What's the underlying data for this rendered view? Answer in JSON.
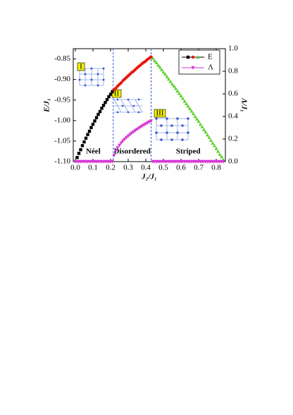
{
  "chart_data": {
    "type": "scatter",
    "xlabel": "J₂/J₁",
    "ylabel": "E/J₁",
    "y2label": "Λ/J₁",
    "xlim": [
      -0.012,
      0.852
    ],
    "ylim": [
      -1.1,
      -0.825
    ],
    "y2lim": [
      0,
      1
    ],
    "xticks": [
      {
        "value": 0,
        "label": "0.0"
      },
      {
        "value": 0.1,
        "label": "0.1"
      },
      {
        "value": 0.2,
        "label": "0.2"
      },
      {
        "value": 0.3,
        "label": "0.3"
      },
      {
        "value": 0.4,
        "label": "0.4"
      },
      {
        "value": 0.5,
        "label": "0.5"
      },
      {
        "value": 0.6,
        "label": "0.6"
      },
      {
        "value": 0.7,
        "label": "0.7"
      },
      {
        "value": 0.8,
        "label": "0.8"
      }
    ],
    "yticks": [
      -0.85,
      {
        "value": -0.9,
        "label": "-0.90"
      },
      -0.95,
      {
        "value": -1.0,
        "label": "-1.00"
      },
      -1.05,
      {
        "value": -1.1,
        "label": "-1.10"
      }
    ],
    "y2ticks": [
      {
        "value": 0,
        "label": "0.0"
      },
      {
        "value": 0.2,
        "label": "0.2"
      },
      {
        "value": 0.4,
        "label": "0.4"
      },
      {
        "value": 0.6,
        "label": "0.6"
      },
      {
        "value": 0.8,
        "label": "0.8"
      },
      {
        "value": 1,
        "label": "1.0"
      }
    ],
    "phase_boundaries": [
      0.215,
      0.43
    ],
    "phases": [
      "Néel",
      "Disordered",
      "Striped"
    ],
    "insets": [
      "I",
      "II",
      "III"
    ],
    "legend": "upper right",
    "series": [
      {
        "name": "E",
        "segments": [
          {
            "color": "#000000",
            "marker": "square",
            "x": [
              0.01,
              0.02,
              0.03,
              0.04,
              0.05,
              0.06,
              0.07,
              0.08,
              0.09,
              0.1,
              0.11,
              0.12,
              0.13,
              0.14,
              0.15,
              0.16,
              0.17,
              0.18,
              0.19,
              0.2,
              0.21
            ],
            "values": [
              -1.09,
              -1.08,
              -1.071,
              -1.061,
              -1.052,
              -1.043,
              -1.034,
              -1.026,
              -1.017,
              -1.009,
              -1.001,
              -0.993,
              -0.985,
              -0.978,
              -0.97,
              -0.963,
              -0.956,
              -0.949,
              -0.942,
              -0.936,
              -0.93
            ]
          },
          {
            "color": "#e8140c",
            "marker": "circle",
            "x": [
              0.22,
              0.23,
              0.24,
              0.25,
              0.26,
              0.27,
              0.28,
              0.29,
              0.3,
              0.31,
              0.32,
              0.33,
              0.34,
              0.35,
              0.36,
              0.37,
              0.38,
              0.39,
              0.4,
              0.41,
              0.42,
              0.43
            ],
            "values": [
              -0.925,
              -0.921,
              -0.916,
              -0.912,
              -0.908,
              -0.903,
              -0.899,
              -0.895,
              -0.891,
              -0.887,
              -0.883,
              -0.88,
              -0.876,
              -0.872,
              -0.868,
              -0.865,
              -0.861,
              -0.858,
              -0.855,
              -0.851,
              -0.848,
              -0.845
            ]
          },
          {
            "color": "#5fd12a",
            "marker": "triangle",
            "x": [
              0.44,
              0.45,
              0.46,
              0.47,
              0.48,
              0.49,
              0.5,
              0.51,
              0.52,
              0.53,
              0.54,
              0.55,
              0.56,
              0.57,
              0.58,
              0.59,
              0.6,
              0.61,
              0.62,
              0.63,
              0.64,
              0.65,
              0.66,
              0.67,
              0.68,
              0.69,
              0.7,
              0.71,
              0.72,
              0.73,
              0.74,
              0.75,
              0.76,
              0.77,
              0.78,
              0.79,
              0.8,
              0.81,
              0.82,
              0.83,
              0.84
            ],
            "values": [
              -0.848,
              -0.854,
              -0.859,
              -0.865,
              -0.87,
              -0.876,
              -0.882,
              -0.887,
              -0.893,
              -0.899,
              -0.905,
              -0.911,
              -0.916,
              -0.922,
              -0.928,
              -0.934,
              -0.94,
              -0.946,
              -0.953,
              -0.959,
              -0.965,
              -0.971,
              -0.977,
              -0.983,
              -0.99,
              -0.996,
              -1.002,
              -1.009,
              -1.015,
              -1.022,
              -1.028,
              -1.035,
              -1.041,
              -1.048,
              -1.055,
              -1.061,
              -1.068,
              -1.075,
              -1.082,
              -1.088,
              -1.095
            ]
          }
        ]
      },
      {
        "name": "Λ",
        "axis": "y2",
        "segments": [
          {
            "color": "#d633d6",
            "marker": "triangle-down",
            "x": [
              0.0,
              0.01,
              0.02,
              0.03,
              0.04,
              0.05,
              0.06,
              0.07,
              0.08,
              0.09,
              0.1,
              0.11,
              0.12,
              0.13,
              0.14,
              0.15,
              0.16,
              0.17,
              0.18,
              0.19,
              0.2,
              0.21,
              0.22,
              0.23,
              0.24,
              0.25,
              0.26,
              0.27,
              0.28,
              0.29,
              0.3,
              0.31,
              0.32,
              0.33,
              0.34,
              0.35,
              0.36,
              0.37,
              0.38,
              0.39,
              0.4,
              0.41,
              0.42,
              0.43,
              0.44,
              0.45,
              0.46,
              0.47,
              0.48,
              0.49,
              0.5,
              0.51,
              0.52,
              0.53,
              0.54,
              0.55,
              0.56,
              0.57,
              0.58,
              0.59,
              0.6,
              0.61,
              0.62,
              0.63,
              0.64,
              0.65,
              0.66,
              0.67,
              0.68,
              0.69,
              0.7,
              0.71,
              0.72,
              0.73,
              0.74,
              0.75,
              0.76,
              0.77,
              0.78,
              0.79,
              0.8,
              0.81,
              0.82,
              0.83,
              0.84
            ],
            "values": [
              0,
              0,
              0,
              0,
              0,
              0,
              0,
              0,
              0,
              0,
              0,
              0,
              0,
              0,
              0,
              0,
              0,
              0,
              0,
              0,
              0,
              0,
              0.055,
              0.095,
              0.123,
              0.145,
              0.165,
              0.182,
              0.198,
              0.213,
              0.226,
              0.239,
              0.252,
              0.263,
              0.275,
              0.285,
              0.296,
              0.306,
              0.315,
              0.325,
              0.334,
              0.343,
              0.352,
              0.36,
              0,
              0,
              0,
              0,
              0,
              0,
              0,
              0,
              0,
              0,
              0,
              0,
              0,
              0,
              0,
              0,
              0,
              0,
              0,
              0,
              0,
              0,
              0,
              0,
              0,
              0,
              0,
              0,
              0,
              0,
              0,
              0,
              0,
              0,
              0,
              0,
              0,
              0,
              0,
              0,
              0
            ]
          }
        ]
      }
    ]
  }
}
